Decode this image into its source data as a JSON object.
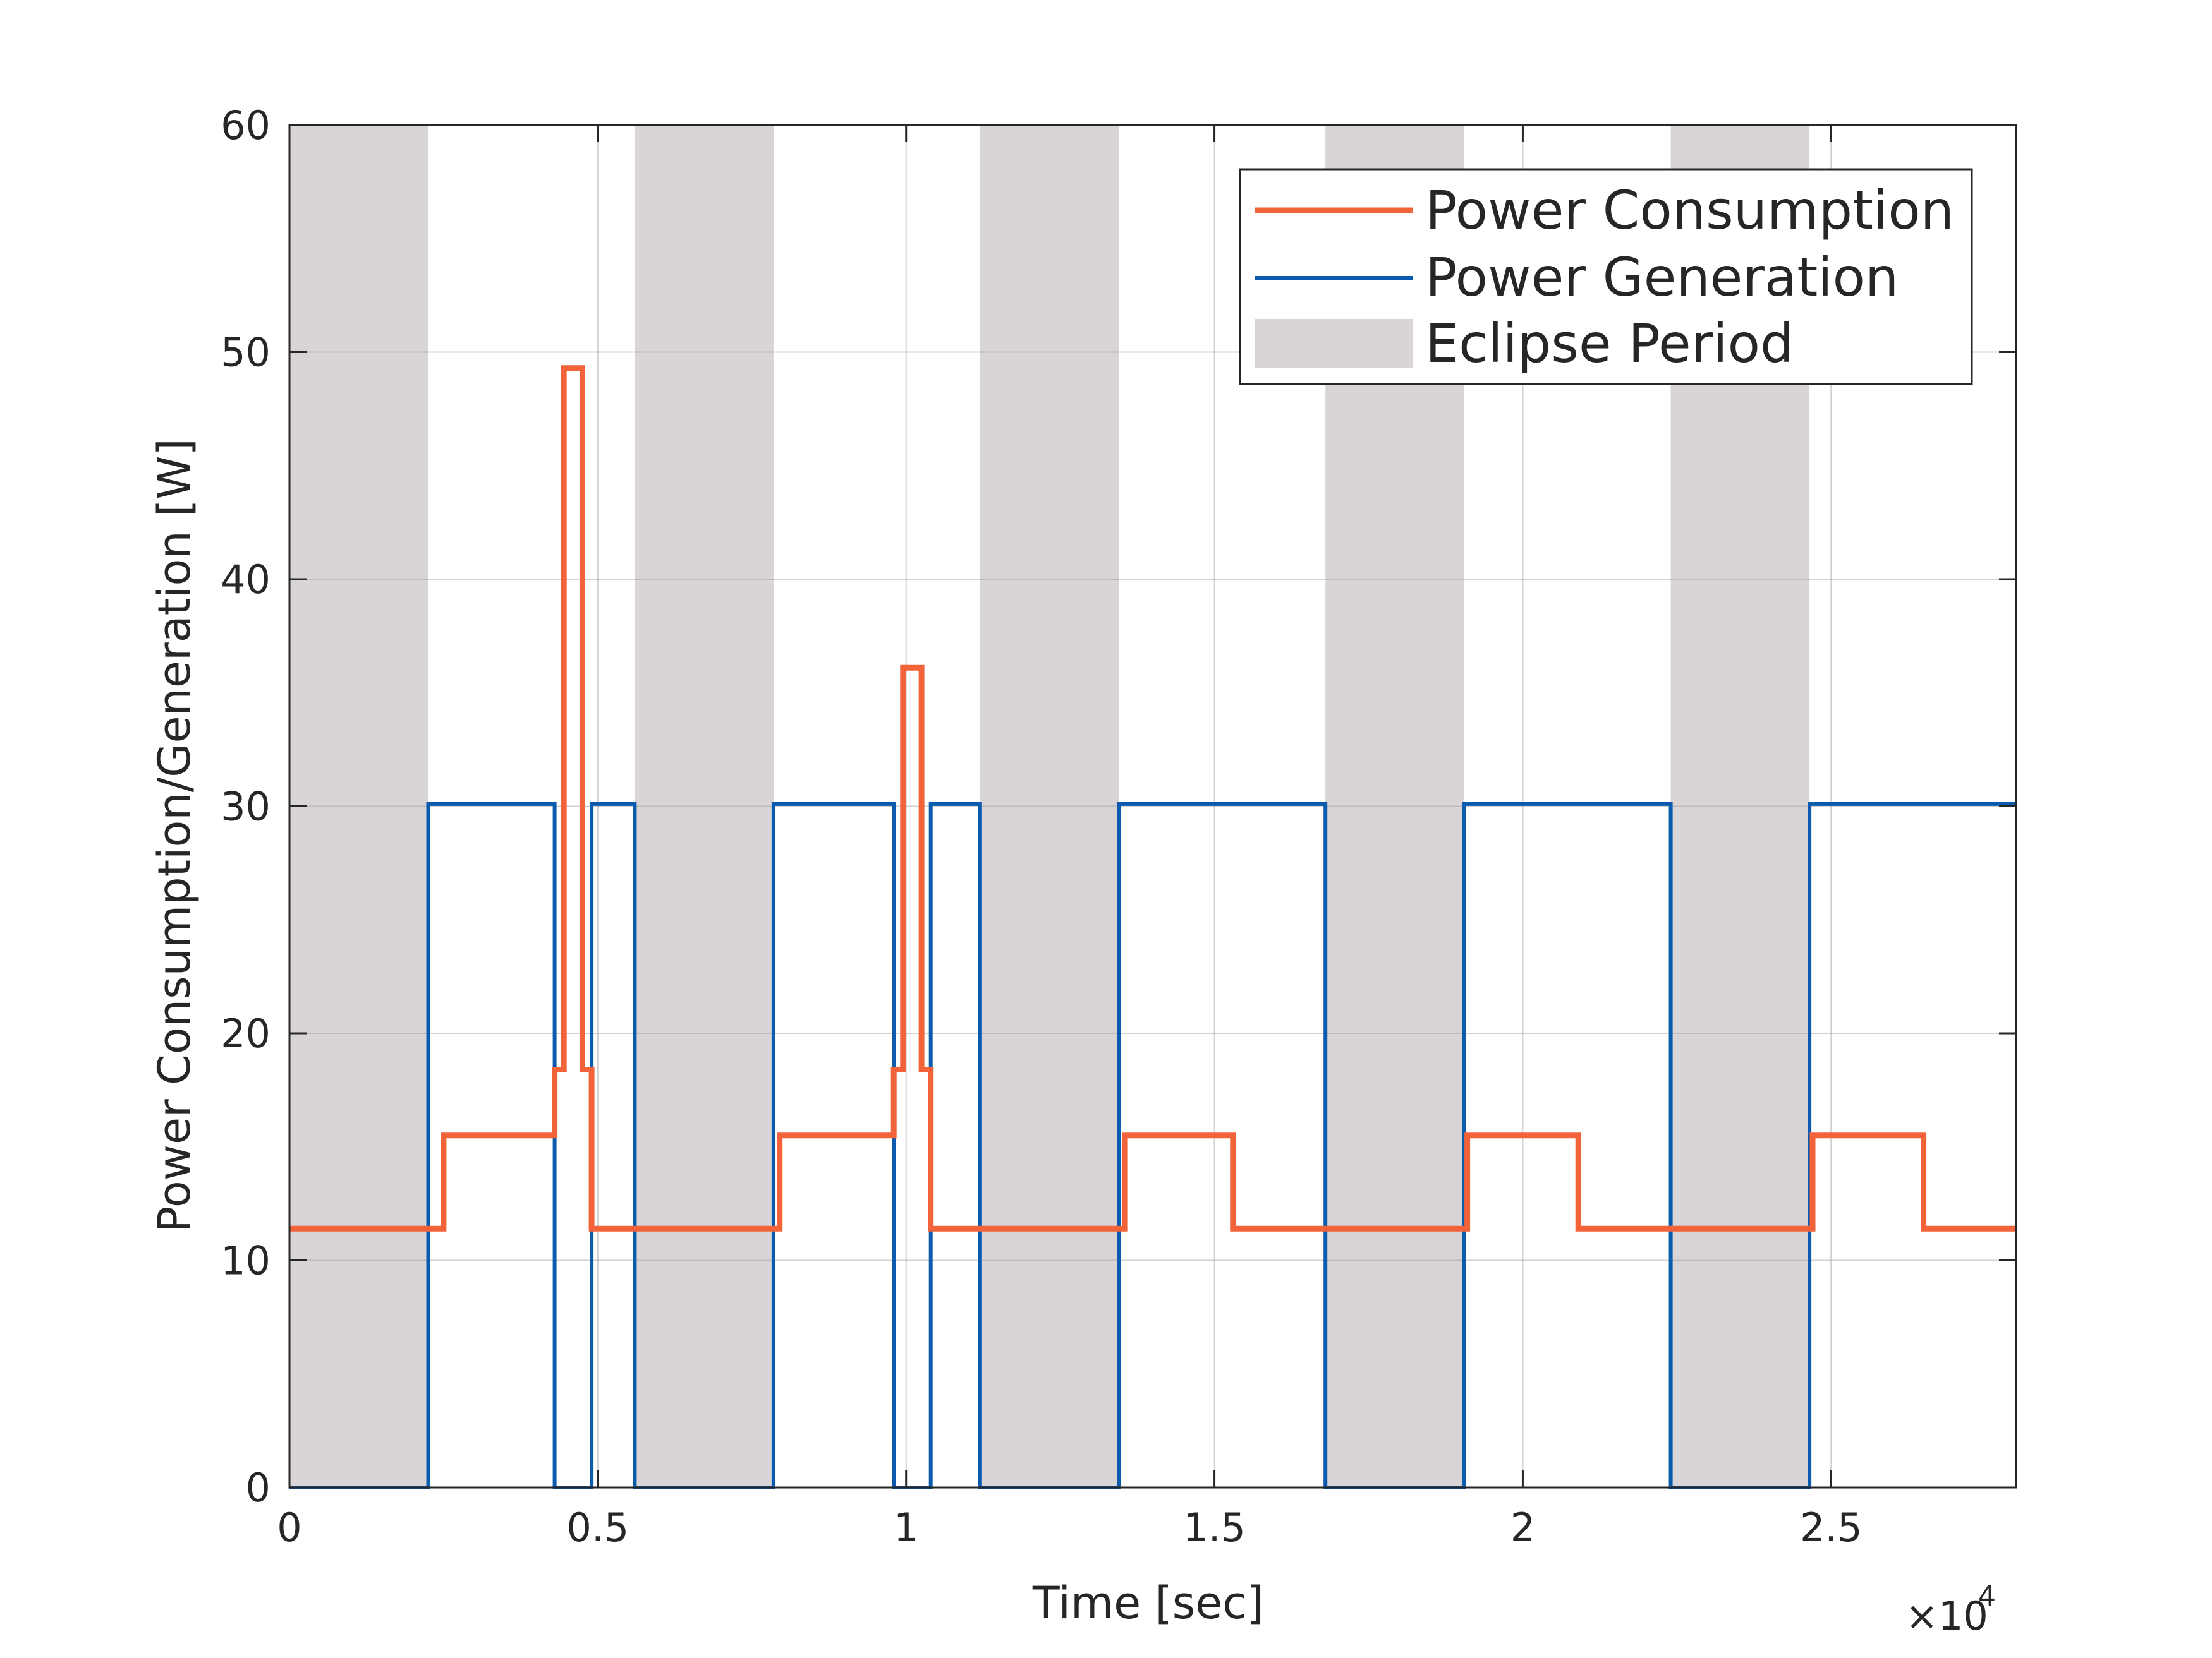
{
  "chart_data": {
    "type": "line",
    "title": "",
    "xlabel": "Time [sec]",
    "ylabel": "Power Consumption/Generation [W]",
    "x_multiplier_label": {
      "base": "×10",
      "exponent": "4"
    },
    "xlim": [
      0,
      28000
    ],
    "ylim": [
      0,
      60
    ],
    "x_ticks": [
      {
        "value": 0,
        "label": "0"
      },
      {
        "value": 5000,
        "label": "0.5"
      },
      {
        "value": 10000,
        "label": "1"
      },
      {
        "value": 15000,
        "label": "1.5"
      },
      {
        "value": 20000,
        "label": "2"
      },
      {
        "value": 25000,
        "label": "2.5"
      }
    ],
    "y_ticks": [
      {
        "value": 0,
        "label": "0"
      },
      {
        "value": 10,
        "label": "10"
      },
      {
        "value": 20,
        "label": "20"
      },
      {
        "value": 30,
        "label": "30"
      },
      {
        "value": 40,
        "label": "40"
      },
      {
        "value": 50,
        "label": "50"
      },
      {
        "value": 60,
        "label": "60"
      }
    ],
    "grid": true,
    "legend_position": "top-right",
    "eclipse_periods": {
      "name": "Eclipse Period",
      "color": "#d9d5d6",
      "intervals": [
        [
          0,
          2250
        ],
        [
          5600,
          7850
        ],
        [
          11200,
          13450
        ],
        [
          16800,
          19050
        ],
        [
          22400,
          24650
        ]
      ]
    },
    "series": [
      {
        "name": "Power Consumption",
        "color": "#f2633a",
        "points": [
          [
            0,
            11.4
          ],
          [
            2500,
            11.4
          ],
          [
            2500,
            15.5
          ],
          [
            4300,
            15.5
          ],
          [
            4300,
            18.4
          ],
          [
            4450,
            18.4
          ],
          [
            4450,
            49.3
          ],
          [
            4750,
            49.3
          ],
          [
            4750,
            18.4
          ],
          [
            4900,
            18.4
          ],
          [
            4900,
            11.4
          ],
          [
            7950,
            11.4
          ],
          [
            7950,
            15.5
          ],
          [
            9800,
            15.5
          ],
          [
            9800,
            18.4
          ],
          [
            9950,
            18.4
          ],
          [
            9950,
            36.1
          ],
          [
            10250,
            36.1
          ],
          [
            10250,
            18.4
          ],
          [
            10400,
            18.4
          ],
          [
            10400,
            11.4
          ],
          [
            13550,
            11.4
          ],
          [
            13550,
            15.5
          ],
          [
            15300,
            15.5
          ],
          [
            15300,
            11.4
          ],
          [
            19100,
            11.4
          ],
          [
            19100,
            15.5
          ],
          [
            20900,
            15.5
          ],
          [
            20900,
            11.4
          ],
          [
            24700,
            11.4
          ],
          [
            24700,
            15.5
          ],
          [
            26500,
            15.5
          ],
          [
            26500,
            11.4
          ],
          [
            28000,
            11.4
          ]
        ]
      },
      {
        "name": "Power Generation",
        "color": "#0a5aad",
        "points": [
          [
            0,
            0
          ],
          [
            2250,
            0
          ],
          [
            2250,
            30.1
          ],
          [
            4300,
            30.1
          ],
          [
            4300,
            0
          ],
          [
            4900,
            0
          ],
          [
            4900,
            30.1
          ],
          [
            5600,
            30.1
          ],
          [
            5600,
            0
          ],
          [
            7850,
            0
          ],
          [
            7850,
            30.1
          ],
          [
            9800,
            30.1
          ],
          [
            9800,
            0
          ],
          [
            10400,
            0
          ],
          [
            10400,
            30.1
          ],
          [
            11200,
            30.1
          ],
          [
            11200,
            0
          ],
          [
            13450,
            0
          ],
          [
            13450,
            30.1
          ],
          [
            16800,
            30.1
          ],
          [
            16800,
            0
          ],
          [
            19050,
            0
          ],
          [
            19050,
            30.1
          ],
          [
            22400,
            30.1
          ],
          [
            22400,
            0
          ],
          [
            24650,
            0
          ],
          [
            24650,
            30.1
          ],
          [
            28000,
            30.1
          ]
        ]
      }
    ]
  }
}
